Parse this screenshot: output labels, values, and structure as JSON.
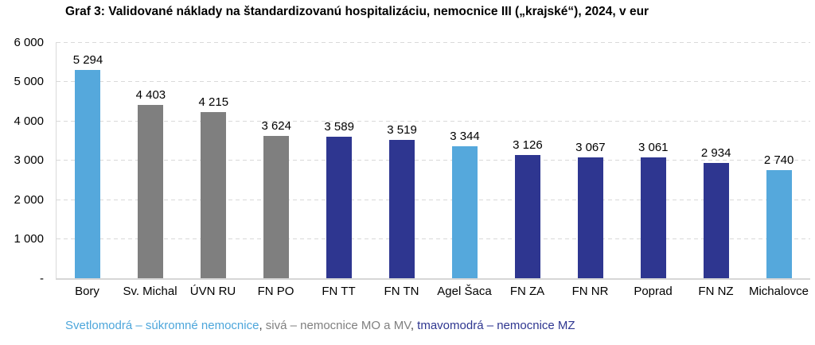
{
  "chart_data": {
    "type": "bar",
    "title": "Graf 3: Validované náklady na štandardizovanú hospitalizáciu, nemocnice III („krajské“), 2024, v eur",
    "categories": [
      "Bory",
      "Sv. Michal",
      "ÚVN RU",
      "FN PO",
      "FN TT",
      "FN TN",
      "Agel Šaca",
      "FN ZA",
      "FN NR",
      "Poprad",
      "FN NZ",
      "Michalovce"
    ],
    "values": [
      5294,
      4403,
      4215,
      3624,
      3589,
      3519,
      3344,
      3126,
      3067,
      3061,
      2934,
      2740
    ],
    "value_labels": [
      "5 294",
      "4 403",
      "4 215",
      "3 624",
      "3 589",
      "3 519",
      "3 344",
      "3 126",
      "3 067",
      "3 061",
      "2 934",
      "2 740"
    ],
    "bar_groups": [
      "sukromne",
      "mo_mv",
      "mo_mv",
      "mo_mv",
      "mz",
      "mz",
      "sukromne",
      "mz",
      "mz",
      "mz",
      "mz",
      "sukromne"
    ],
    "group_colors": {
      "sukromne": "#55A8DC",
      "mo_mv": "#7F7F7F",
      "mz": "#2E3690"
    },
    "ylim": [
      0,
      6000
    ],
    "yticks": [
      {
        "value": 0,
        "label": "-"
      },
      {
        "value": 1000,
        "label": "1 000"
      },
      {
        "value": 2000,
        "label": "2 000"
      },
      {
        "value": 3000,
        "label": "3 000"
      },
      {
        "value": 4000,
        "label": "4 000"
      },
      {
        "value": 5000,
        "label": "5 000"
      },
      {
        "value": 6000,
        "label": "6 000"
      }
    ],
    "grid": true,
    "legend_position": "bottom",
    "xlabel": "",
    "ylabel": ""
  },
  "legend": {
    "segments": [
      {
        "text": "Svetlomodrá – súkromné nemocnice",
        "color": "#4DA6DB"
      },
      {
        "text": ", ",
        "color": "#404040"
      },
      {
        "text": "sivá – nemocnice MO a MV",
        "color": "#7F7F7F"
      },
      {
        "text": ", ",
        "color": "#404040"
      },
      {
        "text": "tmavomodrá – nemocnice MZ",
        "color": "#2E3690"
      }
    ]
  }
}
